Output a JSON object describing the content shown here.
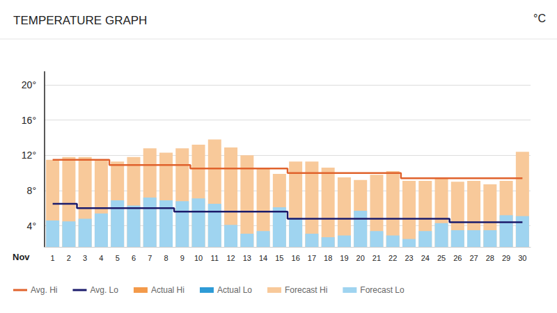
{
  "chart_data": {
    "type": "bar",
    "title": "TEMPERATURE GRAPH",
    "ylabel": "°C",
    "xlabel": "Nov",
    "categories": [
      "1",
      "2",
      "3",
      "4",
      "5",
      "6",
      "7",
      "8",
      "9",
      "10",
      "11",
      "12",
      "13",
      "14",
      "15",
      "16",
      "17",
      "18",
      "19",
      "20",
      "21",
      "22",
      "23",
      "24",
      "25",
      "26",
      "27",
      "28",
      "29",
      "30"
    ],
    "ylim": [
      1.6,
      21.5
    ],
    "yticks": [
      {
        "value": 4,
        "label": "4°"
      },
      {
        "value": 8,
        "label": "8°"
      },
      {
        "value": 12,
        "label": "12°"
      },
      {
        "value": 16,
        "label": "16°"
      },
      {
        "value": 20,
        "label": "20°"
      }
    ],
    "grid": true,
    "legend": "bottom-left",
    "series": [
      {
        "name": "Avg. Hi",
        "type": "line",
        "line_style": "step",
        "color": "#e0622c",
        "values": [
          11.5,
          11.5,
          11.5,
          11.5,
          10.9,
          10.9,
          10.9,
          10.9,
          10.9,
          10.5,
          10.5,
          10.5,
          10.5,
          10.5,
          10.5,
          10.0,
          10.0,
          10.0,
          10.0,
          10.0,
          10.0,
          10.0,
          9.4,
          9.4,
          9.4,
          9.4,
          9.4,
          9.4,
          9.4,
          9.4
        ]
      },
      {
        "name": "Avg. Lo",
        "type": "line",
        "line_style": "step",
        "color": "#1b1b6b",
        "values": [
          6.5,
          6.5,
          6.0,
          6.0,
          6.0,
          6.0,
          6.0,
          6.0,
          5.6,
          5.6,
          5.6,
          5.6,
          5.6,
          5.6,
          5.6,
          4.8,
          4.8,
          4.8,
          4.8,
          4.8,
          4.8,
          4.8,
          4.8,
          4.8,
          4.8,
          4.4,
          4.4,
          4.4,
          4.4,
          4.4
        ]
      },
      {
        "name": "Actual Hi",
        "type": "bar",
        "color": "#f39a4a",
        "values": [
          null,
          null,
          null,
          null,
          null,
          null,
          null,
          null,
          null,
          null,
          null,
          null,
          null,
          null,
          null,
          null,
          null,
          null,
          null,
          null,
          null,
          null,
          null,
          null,
          null,
          null,
          null,
          null,
          null,
          null
        ]
      },
      {
        "name": "Actual Lo",
        "type": "bar",
        "color": "#2e9bd6",
        "values": [
          null,
          null,
          null,
          null,
          null,
          null,
          null,
          null,
          null,
          null,
          null,
          null,
          null,
          null,
          null,
          null,
          null,
          null,
          null,
          null,
          null,
          null,
          null,
          null,
          null,
          null,
          null,
          null,
          null,
          null
        ]
      },
      {
        "name": "Forecast Hi",
        "type": "bar",
        "color": "#f8c99a",
        "values": [
          11.5,
          11.8,
          11.8,
          11.5,
          11.3,
          11.8,
          12.8,
          12.3,
          12.8,
          13.2,
          13.8,
          12.9,
          12.0,
          10.5,
          9.9,
          11.3,
          11.3,
          10.6,
          9.5,
          9.2,
          9.8,
          10.2,
          9.1,
          9.1,
          9.4,
          9.0,
          9.1,
          8.7,
          9.1,
          12.4
        ]
      },
      {
        "name": "Forecast Lo",
        "type": "bar",
        "color": "#9fd4f0",
        "values": [
          4.6,
          4.5,
          4.8,
          5.4,
          6.9,
          6.3,
          7.2,
          6.9,
          6.8,
          7.1,
          6.5,
          4.1,
          3.1,
          3.4,
          6.1,
          4.9,
          3.1,
          2.7,
          2.9,
          5.7,
          3.4,
          2.9,
          2.5,
          3.4,
          4.3,
          3.5,
          3.5,
          3.5,
          5.2,
          5.1
        ]
      }
    ]
  }
}
